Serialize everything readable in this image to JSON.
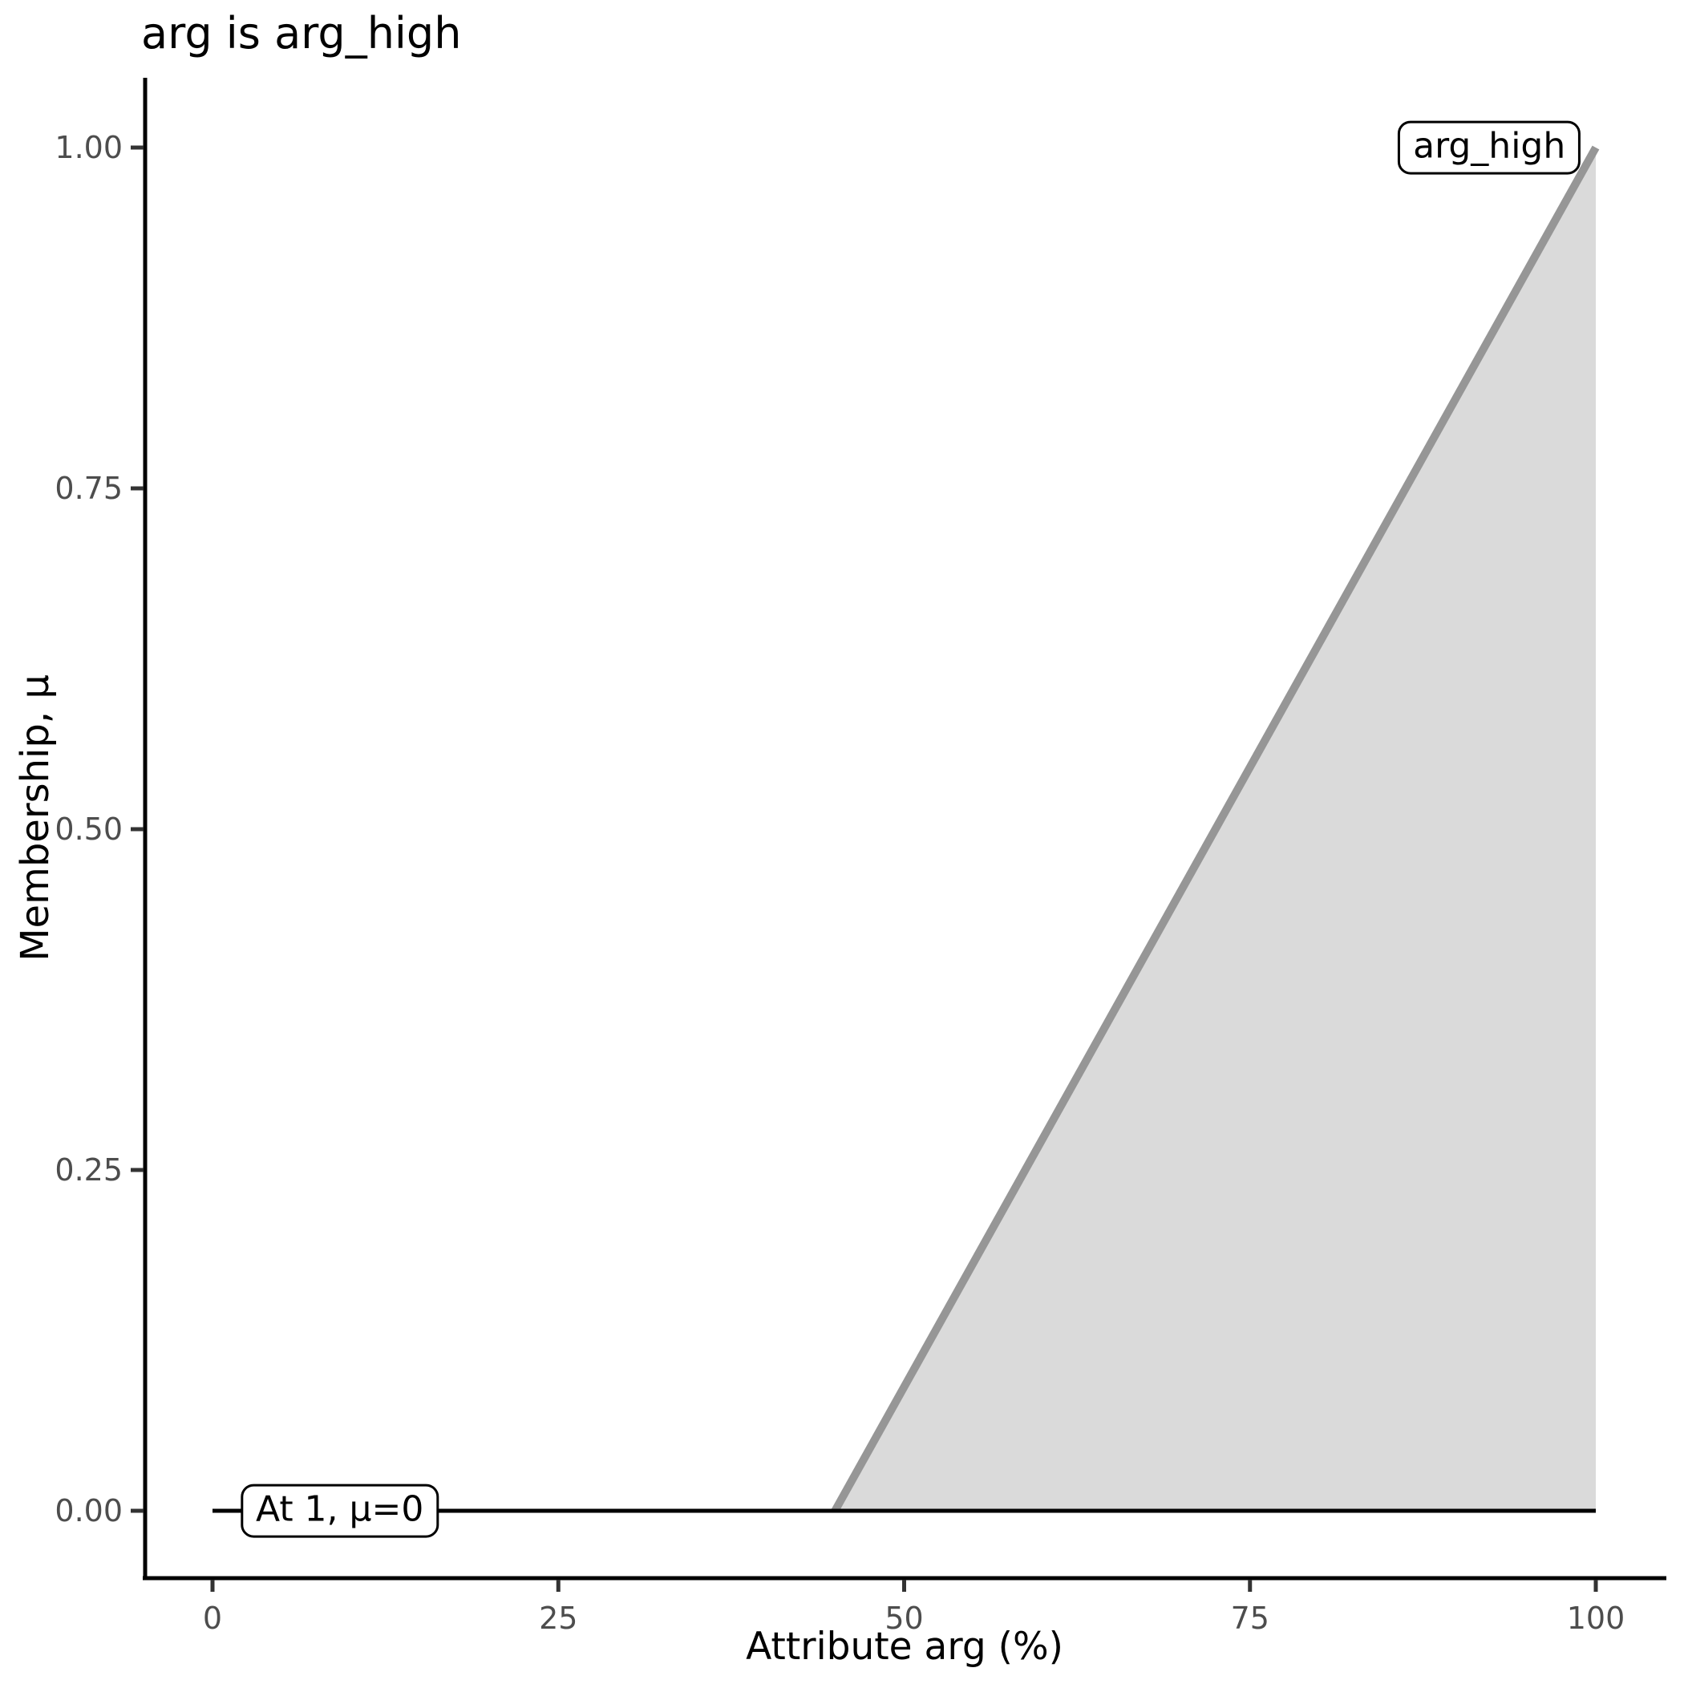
{
  "chart_data": {
    "type": "area",
    "title": "arg is arg_high",
    "xlabel": "Attribute arg (%)",
    "ylabel": "Membership, μ",
    "xlim": [
      0,
      100
    ],
    "ylim": [
      0,
      1
    ],
    "x_ticks": [
      0,
      25,
      50,
      75,
      100
    ],
    "y_ticks": [
      "0.00",
      "0.25",
      "0.50",
      "0.75",
      "1.00"
    ],
    "grid": false,
    "legend": "none",
    "background_color": "#ffffff",
    "series": [
      {
        "name": "arg_high_membership",
        "description": "membership function of fuzzy set arg_high, linear ramp",
        "points": [
          [
            45,
            0
          ],
          [
            100,
            1
          ]
        ],
        "fill_under": true,
        "line_color": "#969696",
        "fill_color": "#DADADA",
        "line_width": 10
      },
      {
        "name": "zero_membership_line",
        "description": "mu = 0 baseline from x=0 to x=100",
        "points": [
          [
            0,
            0
          ],
          [
            100,
            0
          ]
        ],
        "fill_under": false,
        "line_color": "#000000",
        "fill_color": "none",
        "line_width": 5
      }
    ],
    "annotations": [
      {
        "label": "arg_high",
        "x": 92.3,
        "y": 1.0
      },
      {
        "label": "At 1, μ=0",
        "x": 9.2,
        "y": 0.0
      }
    ],
    "axis_color": "#000000",
    "tick_label_color": "#4D4D4D"
  }
}
